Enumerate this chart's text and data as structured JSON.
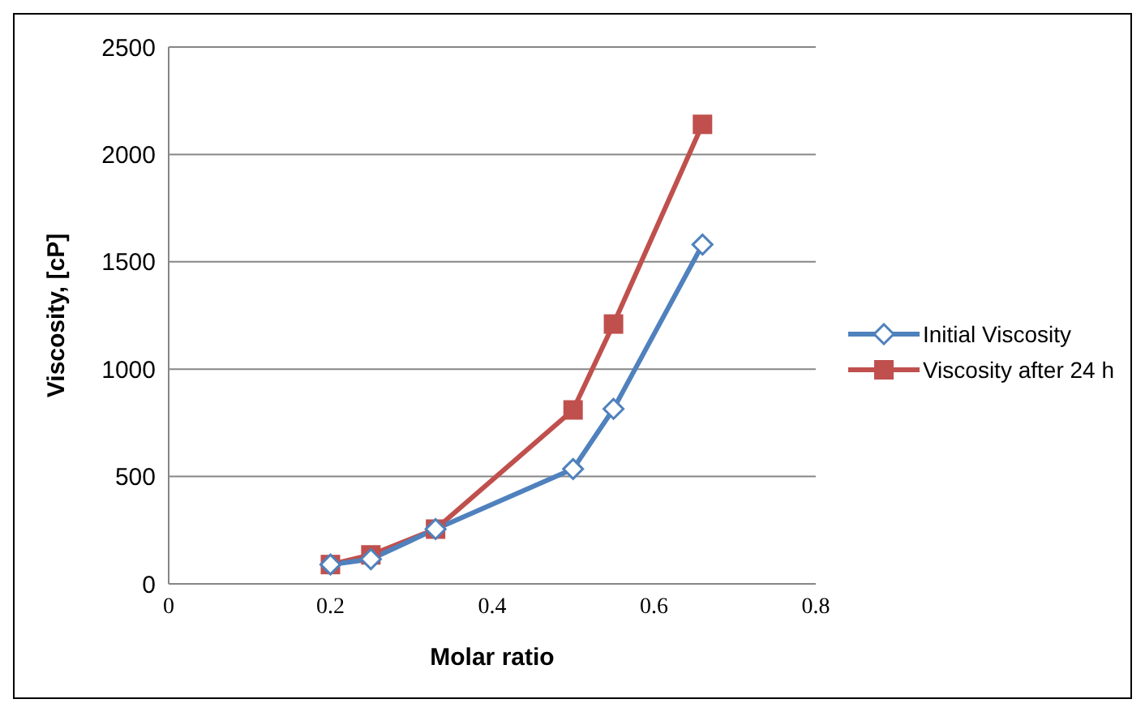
{
  "chart_data": {
    "type": "line",
    "xlabel": "Molar ratio",
    "ylabel": "Viscosity, [cP]",
    "xlim": [
      0,
      0.8
    ],
    "xticks": [
      0,
      0.2,
      0.4,
      0.6,
      0.8
    ],
    "ylim": [
      0,
      2500
    ],
    "yticks": [
      0,
      500,
      1000,
      1500,
      2000,
      2500
    ],
    "grid": "y",
    "legend": "right",
    "series": [
      {
        "name": "Initial Viscosity",
        "color": "#4f81bd",
        "marker": "diamond",
        "x": [
          0.2,
          0.25,
          0.33,
          0.5,
          0.55,
          0.66
        ],
        "values": [
          90,
          115,
          255,
          535,
          815,
          1580
        ]
      },
      {
        "name": "Viscosity after 24 h",
        "color": "#c0504d",
        "marker": "square",
        "x": [
          0.2,
          0.25,
          0.33,
          0.5,
          0.55,
          0.66
        ],
        "values": [
          90,
          135,
          255,
          810,
          1210,
          2140
        ]
      }
    ]
  }
}
